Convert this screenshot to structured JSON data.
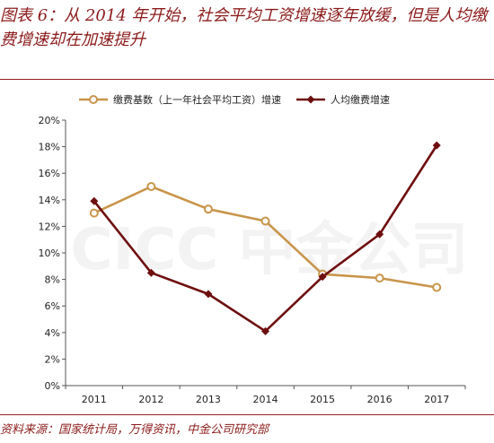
{
  "figure": {
    "title": "图表 6：从 2014 年开始，社会平均工资增速逐年放缓，但是人均缴费增速却在加速提升",
    "source": "资料来源：国家统计局，万得资讯，中金公司研究部",
    "watermark": "CICC 中金公司",
    "accent_color": "#9a1b1b"
  },
  "chart_data": {
    "type": "line",
    "x": [
      "2011",
      "2012",
      "2013",
      "2014",
      "2015",
      "2016",
      "2017"
    ],
    "ylim": [
      0,
      20
    ],
    "yticks": [
      "0%",
      "2%",
      "4%",
      "6%",
      "8%",
      "10%",
      "12%",
      "14%",
      "16%",
      "18%",
      "20%"
    ],
    "grid": false,
    "legend_position": "top",
    "series": [
      {
        "name": "缴费基数（上一年社会平均工资）增速",
        "values": [
          13.0,
          15.0,
          13.3,
          12.4,
          8.4,
          8.1,
          7.4
        ],
        "color": "#c8954a",
        "marker": "circle"
      },
      {
        "name": "人均缴费增速",
        "values": [
          13.9,
          8.5,
          6.9,
          4.1,
          8.2,
          11.4,
          18.1
        ],
        "color": "#6e0f0f",
        "marker": "diamond"
      }
    ]
  }
}
